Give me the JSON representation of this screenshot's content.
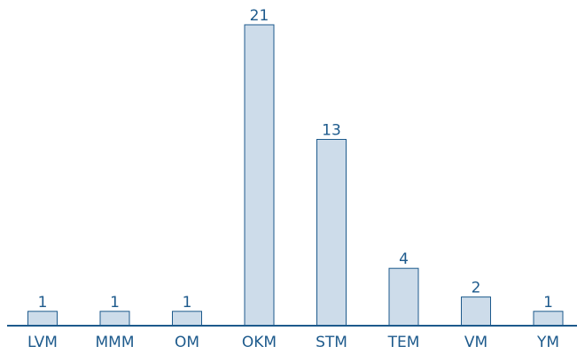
{
  "chart_data": {
    "type": "bar",
    "categories": [
      "LVM",
      "MMM",
      "OM",
      "OKM",
      "STM",
      "TEM",
      "VM",
      "YM"
    ],
    "values": [
      1,
      1,
      1,
      21,
      13,
      4,
      2,
      1
    ],
    "data_labels": [
      "1",
      "1",
      "1",
      "21",
      "13",
      "4",
      "2",
      "1"
    ],
    "ylim": [
      0,
      21
    ],
    "grid": false,
    "legend": "none",
    "colors": {
      "bar_fill": "#cddcea",
      "bar_stroke": "#1d5a8c",
      "text": "#1d5a8c",
      "axis": "#1d5a8c"
    }
  }
}
